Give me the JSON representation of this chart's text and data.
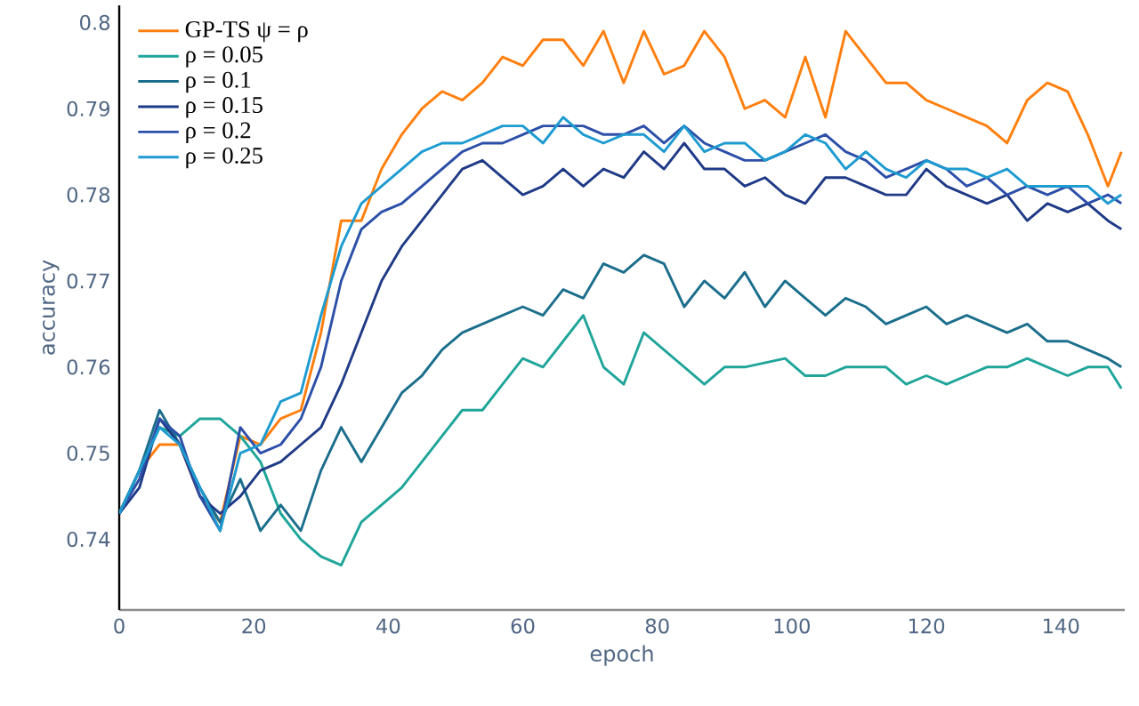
{
  "chart_data": {
    "type": "line",
    "xlabel": "epoch",
    "ylabel": "accuracy",
    "xlim": [
      0,
      149.5
    ],
    "ylim": [
      0.7318,
      0.802
    ],
    "xticks": [
      0,
      20,
      40,
      60,
      80,
      100,
      120,
      140
    ],
    "yticks": [
      0.74,
      0.75,
      0.76,
      0.77,
      0.78,
      0.79,
      0.8
    ],
    "legend": "top left",
    "x": [
      0,
      3,
      6,
      9,
      12,
      15,
      18,
      21,
      24,
      27,
      30,
      33,
      36,
      39,
      42,
      45,
      48,
      51,
      54,
      57,
      60,
      63,
      66,
      69,
      72,
      75,
      78,
      81,
      84,
      87,
      90,
      93,
      96,
      99,
      102,
      105,
      108,
      111,
      114,
      117,
      120,
      123,
      126,
      129,
      132,
      135,
      138,
      141,
      144,
      147,
      149
    ],
    "series": [
      {
        "name": "GP-TS ψ = ρ",
        "color": "#ff7f0e",
        "values": [
          0.743,
          0.748,
          0.751,
          0.751,
          0.745,
          0.742,
          0.752,
          0.751,
          0.754,
          0.755,
          0.764,
          0.777,
          0.777,
          0.783,
          0.787,
          0.79,
          0.792,
          0.791,
          0.793,
          0.796,
          0.795,
          0.798,
          0.798,
          0.795,
          0.799,
          0.793,
          0.799,
          0.794,
          0.795,
          0.799,
          0.796,
          0.79,
          0.791,
          0.789,
          0.796,
          0.789,
          0.799,
          0.796,
          0.793,
          0.793,
          0.791,
          0.79,
          0.789,
          0.788,
          0.786,
          0.791,
          0.793,
          0.792,
          0.787,
          0.781,
          0.785
        ]
      },
      {
        "name": "ρ = 0.05",
        "color": "#1fa59a",
        "values": [
          0.743,
          0.748,
          0.753,
          0.752,
          0.754,
          0.754,
          0.752,
          0.749,
          0.743,
          0.74,
          0.738,
          0.737,
          0.742,
          0.744,
          0.746,
          0.749,
          0.752,
          0.755,
          0.755,
          0.758,
          0.761,
          0.76,
          0.763,
          0.766,
          0.76,
          0.758,
          0.764,
          0.762,
          0.76,
          0.758,
          0.76,
          0.76,
          0.7605,
          0.761,
          0.759,
          0.759,
          0.76,
          0.76,
          0.76,
          0.758,
          0.759,
          0.758,
          0.759,
          0.76,
          0.76,
          0.761,
          0.76,
          0.759,
          0.76,
          0.76,
          0.7575
        ]
      },
      {
        "name": "ρ = 0.1",
        "color": "#1b6e8c",
        "values": [
          0.743,
          0.748,
          0.755,
          0.751,
          0.746,
          0.742,
          0.747,
          0.741,
          0.744,
          0.741,
          0.748,
          0.753,
          0.749,
          0.753,
          0.757,
          0.759,
          0.762,
          0.764,
          0.765,
          0.766,
          0.767,
          0.766,
          0.769,
          0.768,
          0.772,
          0.771,
          0.773,
          0.772,
          0.767,
          0.77,
          0.768,
          0.771,
          0.767,
          0.77,
          0.768,
          0.766,
          0.768,
          0.767,
          0.765,
          0.766,
          0.767,
          0.765,
          0.766,
          0.765,
          0.764,
          0.765,
          0.763,
          0.763,
          0.762,
          0.761,
          0.76
        ]
      },
      {
        "name": "ρ = 0.15",
        "color": "#1f3a86",
        "values": [
          0.743,
          0.746,
          0.754,
          0.751,
          0.745,
          0.743,
          0.745,
          0.748,
          0.749,
          0.751,
          0.753,
          0.758,
          0.764,
          0.77,
          0.774,
          0.777,
          0.78,
          0.783,
          0.784,
          0.782,
          0.78,
          0.781,
          0.783,
          0.781,
          0.783,
          0.782,
          0.785,
          0.783,
          0.786,
          0.783,
          0.783,
          0.781,
          0.782,
          0.78,
          0.779,
          0.782,
          0.782,
          0.781,
          0.78,
          0.78,
          0.783,
          0.781,
          0.78,
          0.779,
          0.78,
          0.777,
          0.779,
          0.778,
          0.779,
          0.777,
          0.776
        ]
      },
      {
        "name": "ρ = 0.2",
        "color": "#2c4fa8",
        "values": [
          0.743,
          0.747,
          0.754,
          0.752,
          0.745,
          0.741,
          0.753,
          0.75,
          0.751,
          0.754,
          0.76,
          0.77,
          0.776,
          0.778,
          0.779,
          0.781,
          0.783,
          0.785,
          0.786,
          0.786,
          0.787,
          0.788,
          0.788,
          0.788,
          0.787,
          0.787,
          0.788,
          0.786,
          0.788,
          0.786,
          0.785,
          0.784,
          0.784,
          0.785,
          0.786,
          0.787,
          0.785,
          0.784,
          0.782,
          0.783,
          0.784,
          0.783,
          0.781,
          0.782,
          0.78,
          0.781,
          0.78,
          0.781,
          0.779,
          0.78,
          0.779
        ]
      },
      {
        "name": "ρ = 0.25",
        "color": "#1e9bd0",
        "values": [
          0.743,
          0.748,
          0.753,
          0.751,
          0.746,
          0.741,
          0.75,
          0.751,
          0.756,
          0.757,
          0.766,
          0.774,
          0.779,
          0.781,
          0.783,
          0.785,
          0.786,
          0.786,
          0.787,
          0.788,
          0.788,
          0.786,
          0.789,
          0.787,
          0.786,
          0.787,
          0.787,
          0.785,
          0.788,
          0.785,
          0.786,
          0.786,
          0.784,
          0.785,
          0.787,
          0.786,
          0.783,
          0.785,
          0.783,
          0.782,
          0.784,
          0.783,
          0.783,
          0.782,
          0.783,
          0.781,
          0.781,
          0.781,
          0.781,
          0.779,
          0.78
        ]
      }
    ]
  }
}
